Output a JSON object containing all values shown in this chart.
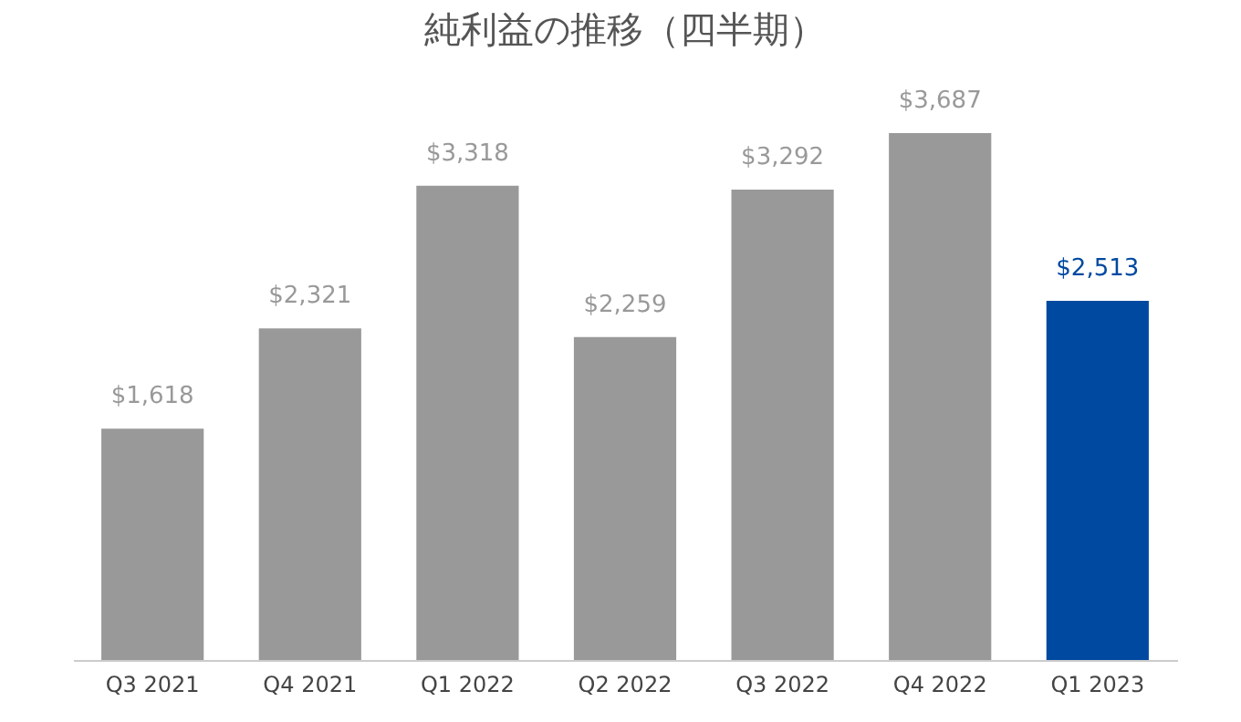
{
  "chart_data": {
    "type": "bar",
    "title": "純利益の推移（四半期）",
    "categories": [
      "Q3 2021",
      "Q4 2021",
      "Q1 2022",
      "Q2 2022",
      "Q3 2022",
      "Q4 2022",
      "Q1 2023"
    ],
    "values": [
      1618,
      2321,
      3318,
      2259,
      3292,
      3687,
      2513
    ],
    "colors": [
      "#999999",
      "#999999",
      "#999999",
      "#999999",
      "#999999",
      "#999999",
      "#0049a0"
    ],
    "value_labels": [
      "$1,618",
      "$2,321",
      "$3,318",
      "$2,259",
      "$3,292",
      "$3,687",
      "$2,513"
    ],
    "grid": false,
    "legend": false
  }
}
